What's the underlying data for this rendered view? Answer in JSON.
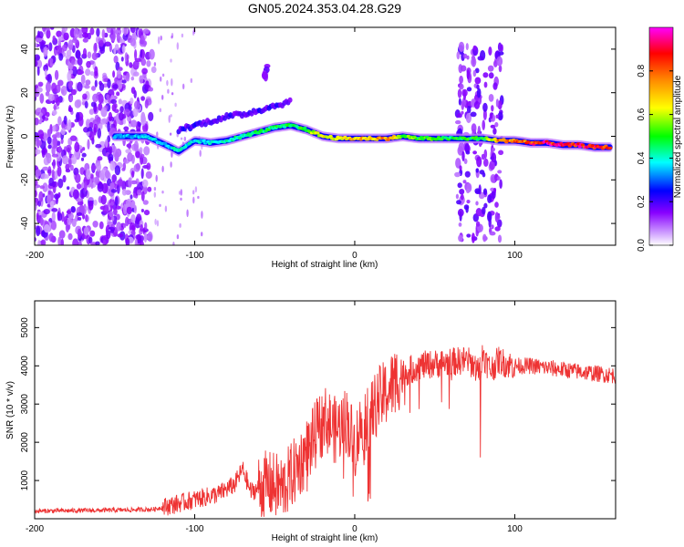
{
  "chart_data": [
    {
      "type": "heatmap",
      "title": "GN05.2024.353.04.28.G29",
      "xlabel": "Height of straight line (km)",
      "ylabel": "Frequency (Hz)",
      "xlim": [
        -200,
        163
      ],
      "ylim": [
        -50,
        50
      ],
      "x_ticks": [
        "-200",
        "-100",
        "0",
        "100"
      ],
      "y_ticks": [
        "-40",
        "-20",
        "0",
        "20",
        "40"
      ],
      "colorbar": {
        "label": "Normalized spectral amplitude",
        "range": [
          0,
          1
        ],
        "ticks": [
          "0.0",
          "0.2",
          "0.4",
          "0.6",
          "0.8"
        ],
        "colors": [
          "#ffffff",
          "#8800ff",
          "#0000ff",
          "#00ffff",
          "#00ff00",
          "#ffff00",
          "#ff8800",
          "#ff0000",
          "#ff00ff"
        ]
      },
      "ridge": {
        "x": [
          -150,
          -130,
          -115,
          -110,
          -100,
          -90,
          -80,
          -70,
          -60,
          -50,
          -40,
          -30,
          -20,
          -10,
          0,
          10,
          20,
          30,
          40,
          50,
          60,
          70,
          80,
          90,
          100,
          110,
          120,
          130,
          140,
          150,
          160
        ],
        "y": [
          0,
          0,
          -5,
          -7,
          -2,
          -3,
          -2,
          0,
          2,
          4,
          5,
          3,
          0,
          -1,
          -1,
          -1,
          -1,
          0,
          -1,
          -1,
          -1,
          -1,
          -1,
          -2,
          -2,
          -3,
          -3,
          -4,
          -4,
          -5,
          -5
        ],
        "amplitude": [
          0.35,
          0.4,
          0.4,
          0.45,
          0.4,
          0.4,
          0.45,
          0.45,
          0.5,
          0.5,
          0.5,
          0.55,
          0.7,
          0.7,
          0.75,
          0.75,
          0.8,
          0.6,
          0.55,
          0.55,
          0.5,
          0.55,
          0.5,
          0.8,
          0.85,
          0.9,
          0.95,
          0.95,
          0.95,
          0.95,
          0.9
        ]
      },
      "upper_branch": {
        "x": [
          -110,
          -100,
          -90,
          -80,
          -70,
          -60,
          -50,
          -40
        ],
        "y": [
          3,
          5,
          7,
          9,
          10,
          12,
          14,
          16
        ]
      },
      "noise_region_x": [
        -200,
        -125
      ],
      "burst_columns_x": [
        -55,
        68,
        78,
        88
      ]
    },
    {
      "type": "line",
      "xlabel": "Height of straight line (km)",
      "ylabel": "SNR (10 * v/v)",
      "xlim": [
        -200,
        163
      ],
      "ylim": [
        0,
        5700
      ],
      "x_ticks": [
        "-200",
        "-100",
        "0",
        "100"
      ],
      "y_ticks": [
        "1000",
        "2000",
        "3000",
        "4000",
        "5000"
      ],
      "color": "#ee3333",
      "x": [
        -200,
        -180,
        -160,
        -140,
        -125,
        -115,
        -105,
        -95,
        -85,
        -75,
        -70,
        -65,
        -55,
        -45,
        -35,
        -28,
        -22,
        -18,
        -12,
        -5,
        0,
        5,
        10,
        15,
        20,
        25,
        30,
        40,
        50,
        60,
        70,
        75,
        78,
        80,
        82,
        85,
        90,
        95,
        100,
        110,
        120,
        130,
        140,
        150,
        163
      ],
      "y": [
        200,
        210,
        220,
        230,
        250,
        350,
        450,
        550,
        650,
        900,
        1300,
        700,
        900,
        800,
        1400,
        1900,
        2400,
        2600,
        2300,
        2600,
        1900,
        2600,
        2800,
        3100,
        3300,
        3600,
        3800,
        4000,
        4050,
        4100,
        4150,
        4000,
        3800,
        4400,
        4100,
        3900,
        4150,
        4050,
        4000,
        4000,
        3950,
        3900,
        3850,
        3800,
        3750
      ]
    }
  ]
}
